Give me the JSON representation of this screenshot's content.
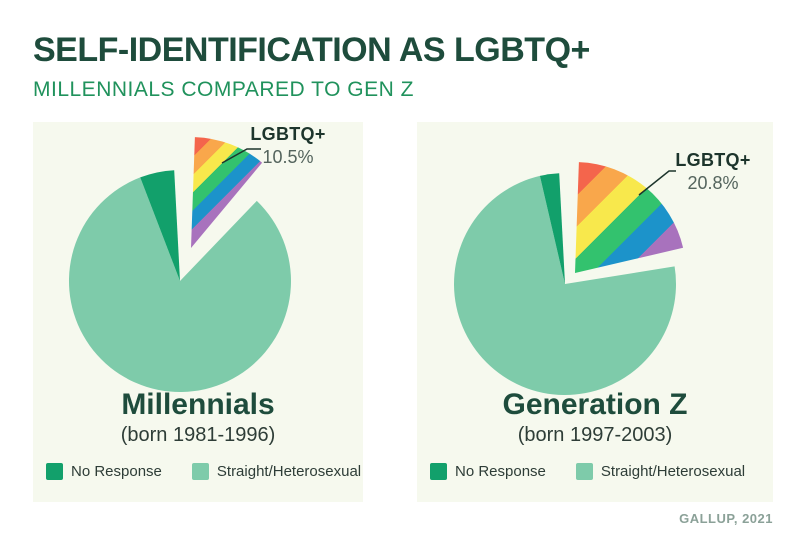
{
  "header": {
    "title": "SELF-IDENTIFICATION AS LGBTQ+",
    "subtitle": "MILLENNIALS COMPARED TO GEN Z"
  },
  "source": "GALLUP, 2021",
  "colors": {
    "straight": "#7ecbaa",
    "no_response": "#12a06b",
    "title": "#1e4c3c",
    "subtitle": "#20925c",
    "panel_bg": "#f6f9ee",
    "callout_text": "#1d352c",
    "callout_value": "#54645d",
    "body_text": "#2e3d37",
    "footer": "#8ba198",
    "leader": "#1d352c",
    "rainbow": [
      "#f4654c",
      "#f9a74b",
      "#f8e84c",
      "#33c26e",
      "#1c93ca",
      "#a872bd"
    ]
  },
  "chart_data": [
    {
      "type": "pie",
      "title": "Millennials",
      "subtitle": "(born 1981-1996)",
      "callout": {
        "label": "LGBTQ+",
        "value": "10.5%"
      },
      "slices": [
        {
          "label": "Straight/Heterosexual",
          "value": 84.5
        },
        {
          "label": "No Response",
          "value": 5.0
        },
        {
          "label": "LGBTQ+",
          "value": 10.5,
          "exploded": true,
          "fill": "rainbow"
        }
      ],
      "legend": [
        {
          "label": "No Response"
        },
        {
          "label": "Straight/Heterosexual"
        }
      ]
    },
    {
      "type": "pie",
      "title": "Generation Z",
      "subtitle": "(born 1997-2003)",
      "callout": {
        "label": "LGBTQ+",
        "value": "20.8%"
      },
      "slices": [
        {
          "label": "Straight/Heterosexual",
          "value": 76.4
        },
        {
          "label": "No Response",
          "value": 2.8
        },
        {
          "label": "LGBTQ+",
          "value": 20.8,
          "exploded": true,
          "fill": "rainbow"
        }
      ],
      "legend": [
        {
          "label": "No Response"
        },
        {
          "label": "Straight/Heterosexual"
        }
      ]
    }
  ]
}
